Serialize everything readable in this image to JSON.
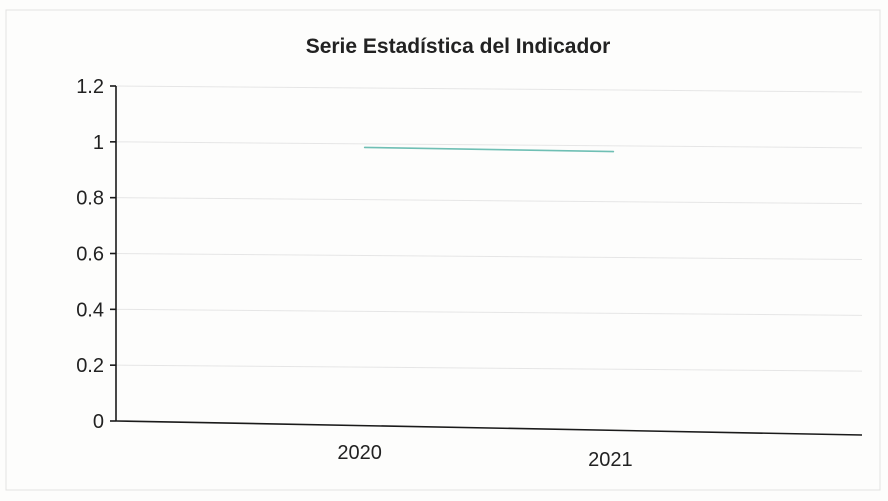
{
  "chart_data": {
    "type": "line",
    "title": "Serie Estadística del Indicador",
    "xlabel": "",
    "ylabel": "",
    "categories": [
      "2020",
      "2021"
    ],
    "series": [
      {
        "values": [
          0.98,
          0.965
        ]
      }
    ],
    "ylim": [
      0,
      1.2
    ],
    "yticks": [
      "0",
      "0.2",
      "0.4",
      "0.6",
      "0.8",
      "1",
      "1.2"
    ],
    "grid": true,
    "legend": "none",
    "colors": {
      "series": "#6fbfb4",
      "axis": "#1a1a1a",
      "grid": "#e6e6e6"
    }
  }
}
